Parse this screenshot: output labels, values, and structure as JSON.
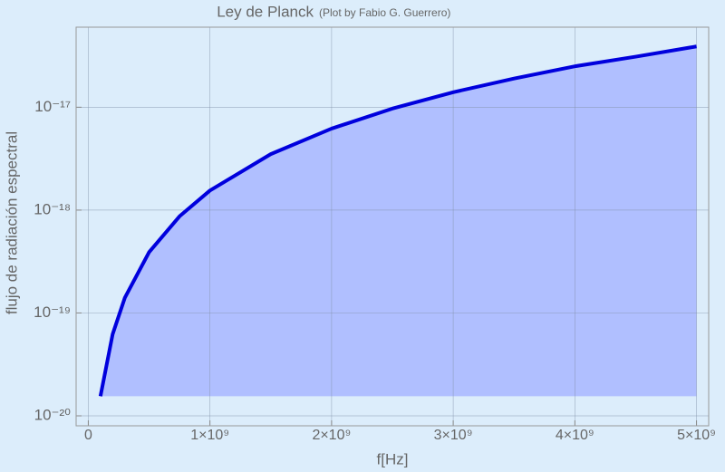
{
  "chart_data": {
    "type": "area",
    "title": "Ley de Planck",
    "subtitle": "(Plot by Fabio G. Guerrero)",
    "x_label": "f[Hz]",
    "y_label": "flujo de radiación espectral",
    "x": [
      100000000,
      200000000,
      300000000,
      500000000,
      750000000,
      1000000000,
      1500000000,
      2000000000,
      2500000000,
      3000000000,
      3500000000,
      4000000000,
      4500000000,
      5000000000
    ],
    "series": [
      {
        "color": "#0000dd",
        "fill": "#b0bfff",
        "values": [
          1.55e-20,
          6.2e-20,
          1.4e-19,
          3.9e-19,
          8.7e-19,
          1.55e-18,
          3.5e-18,
          6.2e-18,
          9.7e-18,
          1.4e-17,
          1.9e-17,
          2.5e-17,
          3.1e-17,
          3.9e-17
        ]
      }
    ],
    "xlim": [
      -100000000,
      5100000000
    ],
    "xticks": [
      0,
      {
        "value": 1000000000,
        "label": "1×10⁹"
      },
      {
        "value": 2000000000,
        "label": "2×10⁹"
      },
      {
        "value": 3000000000,
        "label": "3×10⁹"
      },
      {
        "value": 4000000000,
        "label": "4×10⁹"
      },
      {
        "value": 5000000000,
        "label": "5×10⁹"
      }
    ],
    "ylim": [
      8e-21,
      6e-17
    ],
    "yticks": [
      {
        "value": 1e-20,
        "label": "10⁻²⁰"
      },
      {
        "value": 1e-19,
        "label": "10⁻¹⁹"
      },
      {
        "value": 1e-18,
        "label": "10⁻¹⁸"
      },
      {
        "value": 1e-17,
        "label": "10⁻¹⁷"
      }
    ],
    "y_scale": "log",
    "grid": true
  }
}
